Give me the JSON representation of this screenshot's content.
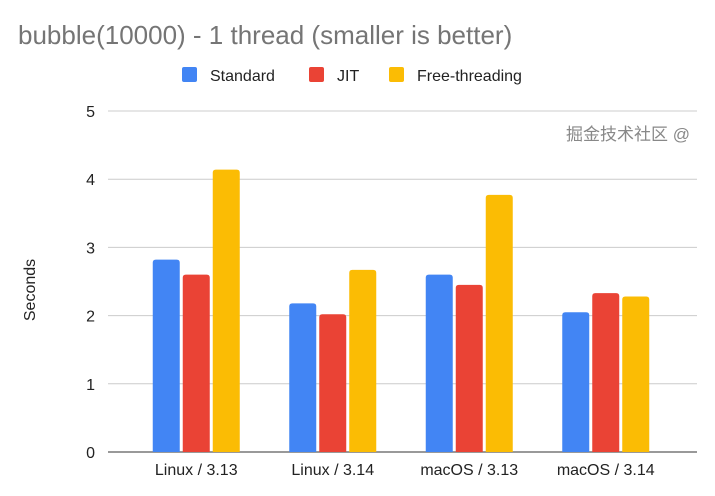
{
  "chart_data": {
    "type": "bar",
    "title": "bubble(10000) - 1 thread (smaller is better)",
    "xlabel": "",
    "ylabel": "Seconds",
    "ylim": [
      0,
      5
    ],
    "yticks": [
      "0",
      "1",
      "2",
      "3",
      "4",
      "5"
    ],
    "grid": true,
    "legend_position": "top",
    "categories": [
      "Linux / 3.13",
      "Linux / 3.14",
      "macOS / 3.13",
      "macOS / 3.14"
    ],
    "series": [
      {
        "name": "Standard",
        "color": "#4285f4",
        "values": [
          2.82,
          2.18,
          2.6,
          2.05
        ]
      },
      {
        "name": "JIT",
        "color": "#ea4335",
        "values": [
          2.6,
          2.02,
          2.45,
          2.33
        ]
      },
      {
        "name": "Free-threading",
        "color": "#fbbc04",
        "values": [
          4.14,
          2.67,
          3.77,
          2.28
        ]
      }
    ]
  },
  "watermark": "掘金技术社区 @"
}
